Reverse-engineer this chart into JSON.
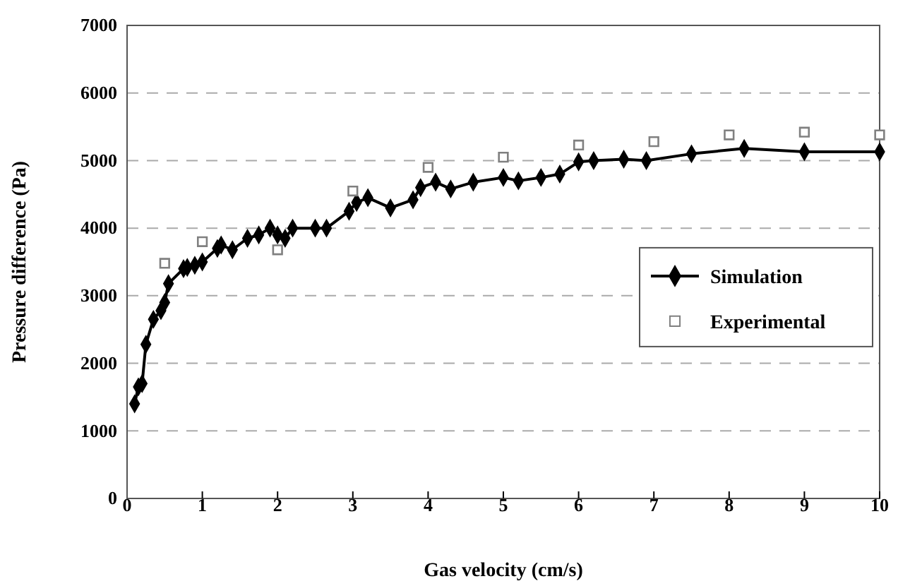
{
  "chart_data": {
    "type": "line",
    "xlabel": "Gas velocity (cm/s)",
    "ylabel": "Pressure difference (Pa)",
    "xlim": [
      0,
      10
    ],
    "xticks": [
      0,
      1,
      2,
      3,
      4,
      5,
      6,
      7,
      8,
      9,
      10
    ],
    "ylim": [
      0,
      7000
    ],
    "yticks": [
      0,
      1000,
      2000,
      3000,
      4000,
      5000,
      6000,
      7000
    ],
    "grid": "y",
    "legend": "right",
    "series": [
      {
        "name": "Simulation",
        "marker": "diamond",
        "color": "#000000",
        "x": [
          0.1,
          0.15,
          0.2,
          0.25,
          0.35,
          0.45,
          0.5,
          0.55,
          0.75,
          0.8,
          0.9,
          1.0,
          1.2,
          1.25,
          1.4,
          1.6,
          1.75,
          1.9,
          2.0,
          2.1,
          2.2,
          2.5,
          2.65,
          2.95,
          3.05,
          3.2,
          3.5,
          3.8,
          3.9,
          4.1,
          4.3,
          4.6,
          5.0,
          5.2,
          5.5,
          5.75,
          6.0,
          6.2,
          6.6,
          6.9,
          7.5,
          8.2,
          9.0,
          10
        ],
        "values": [
          1400,
          1650,
          1700,
          2280,
          2650,
          2780,
          2900,
          3180,
          3400,
          3420,
          3450,
          3500,
          3700,
          3750,
          3680,
          3850,
          3900,
          4000,
          3900,
          3850,
          4000,
          4000,
          4000,
          4250,
          4380,
          4450,
          4300,
          4420,
          4600,
          4680,
          4580,
          4680,
          4750,
          4700,
          4750,
          4800,
          4980,
          5000,
          5020,
          5000,
          5100,
          5180,
          5130,
          5130
        ]
      },
      {
        "name": "Experimental",
        "type": "scatter",
        "marker": "square",
        "color": "#808080",
        "x": [
          0.5,
          1.0,
          2.0,
          3.0,
          4.0,
          5.0,
          6.0,
          7.0,
          8.0,
          9.0,
          10
        ],
        "values": [
          3480,
          3800,
          3680,
          4550,
          4900,
          5050,
          5230,
          5280,
          5380,
          5420,
          5380
        ]
      }
    ]
  }
}
